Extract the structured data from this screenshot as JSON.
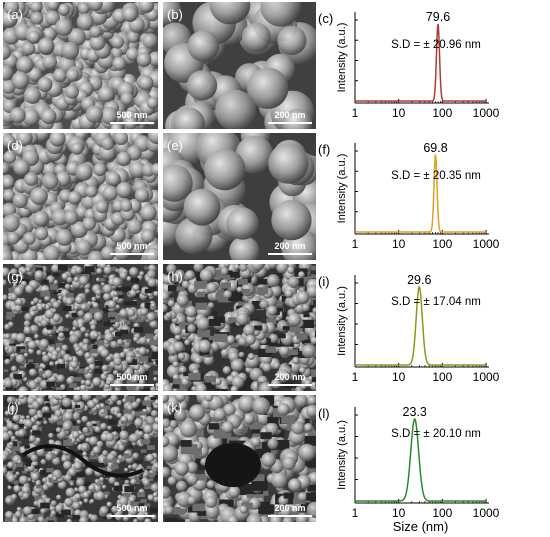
{
  "sem_panels": [
    {
      "label": "(a)",
      "scale": "500 nm"
    },
    {
      "label": "(b)",
      "scale": "200 nm"
    },
    {
      "label": "(d)",
      "scale": "500 nm"
    },
    {
      "label": "(e)",
      "scale": "200 nm"
    },
    {
      "label": "(g)",
      "scale": "500 nm"
    },
    {
      "label": "(h)",
      "scale": "200 nm"
    },
    {
      "label": "(j)",
      "scale": "500 nm"
    },
    {
      "label": "(k)",
      "scale": "200 nm"
    }
  ],
  "chart_data": [
    {
      "type": "line",
      "label": "(c)",
      "peak_label": "79.6",
      "sd": "S.D = ± 20.96 nm",
      "color": "#b03a3a",
      "peak": 79.6,
      "sigma_log": 0.035,
      "xlabel": "",
      "ylabel": "Intensity (a.u.)",
      "xscale": "log",
      "xlim": [
        1,
        1000
      ],
      "xticks": [
        "1",
        "10",
        "100",
        "1000"
      ],
      "series": [
        {
          "x": [
            1,
            70,
            76,
            79.6,
            83,
            90,
            1000
          ],
          "y": [
            0.02,
            0.03,
            0.55,
            1.0,
            0.55,
            0.03,
            0.02
          ]
        }
      ]
    },
    {
      "type": "line",
      "label": "(f)",
      "peak_label": "69.8",
      "sd": "S.D = ± 20.35 nm",
      "color": "#e0a020",
      "peak": 69.8,
      "sigma_log": 0.035,
      "xlabel": "",
      "ylabel": "Intensity (a.u.)",
      "xscale": "log",
      "xlim": [
        1,
        1000
      ],
      "xticks": [
        "1",
        "10",
        "100",
        "1000"
      ],
      "series": [
        {
          "x": [
            1,
            62,
            67,
            69.8,
            73,
            79,
            1000
          ],
          "y": [
            0.02,
            0.03,
            0.55,
            1.0,
            0.55,
            0.03,
            0.02
          ]
        }
      ]
    },
    {
      "type": "line",
      "label": "(i)",
      "peak_label": "29.6",
      "sd": "S.D = ± 17.04 nm",
      "color": "#8a9a1c",
      "peak": 29.6,
      "sigma_log": 0.07,
      "xlabel": "",
      "ylabel": "Intensity (a.u.)",
      "xscale": "log",
      "xlim": [
        1,
        1000
      ],
      "xticks": [
        "1",
        "10",
        "100",
        "1000"
      ],
      "series": [
        {
          "x": [
            1,
            20,
            25,
            29.6,
            35,
            44,
            1000
          ],
          "y": [
            0.0,
            0.03,
            0.5,
            1.0,
            0.5,
            0.03,
            0.0
          ]
        }
      ]
    },
    {
      "type": "line",
      "label": "(l)",
      "peak_label": "23.3",
      "sd": "S.D = ± 20.10 nm",
      "color": "#2a8a2a",
      "peak": 23.3,
      "sigma_log": 0.09,
      "xlabel": "Size (nm)",
      "ylabel": "Intensity (a.u.)",
      "xscale": "log",
      "xlim": [
        1,
        1000
      ],
      "xticks": [
        "1",
        "10",
        "100",
        "1000"
      ],
      "series": [
        {
          "x": [
            1,
            14,
            19,
            23.3,
            29,
            38,
            1000
          ],
          "y": [
            0.0,
            0.03,
            0.5,
            1.0,
            0.5,
            0.03,
            0.0
          ]
        }
      ]
    }
  ]
}
